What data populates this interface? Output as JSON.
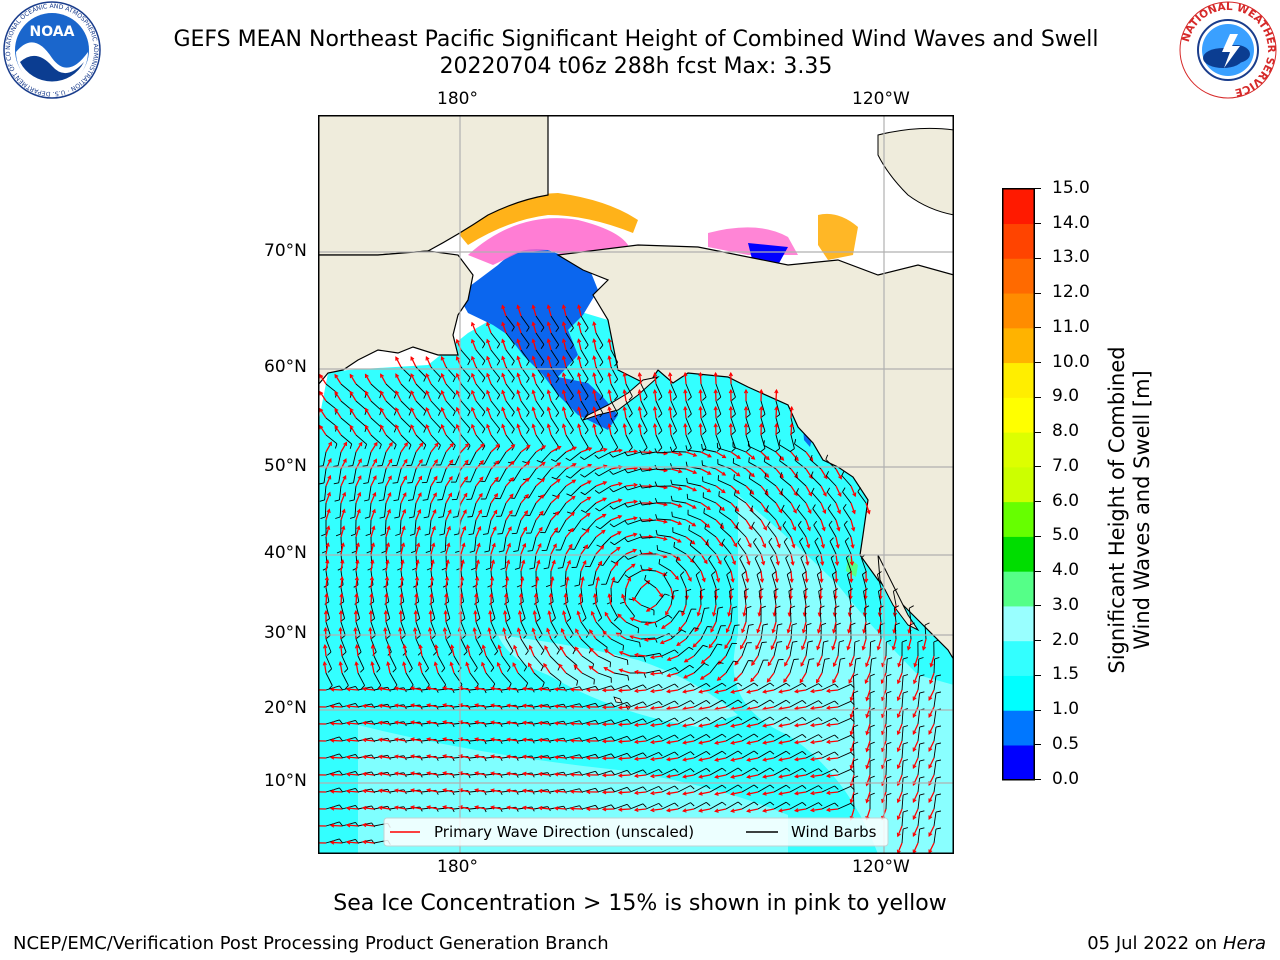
{
  "header": {
    "title_line1": "GEFS MEAN Northeast Pacific Significant Height of Combined Wind Waves and Swell",
    "title_line2": "20220704 t06z 288h fcst   Max: 3.35"
  },
  "logos": {
    "noaa": {
      "text": "NOAA",
      "ring_text": "NATIONAL OCEANIC AND ATMOSPHERIC ADMINISTRATION · U.S. DEPARTMENT OF COMMERCE"
    },
    "nws": {
      "ring_text": "NATIONAL WEATHER SERVICE"
    }
  },
  "map": {
    "lon_labels_top": [
      "180°",
      "120°W"
    ],
    "lon_labels_bottom": [
      "180°",
      "120°W"
    ],
    "lat_labels": [
      "70°N",
      "60°N",
      "50°N",
      "40°N",
      "30°N",
      "20°N",
      "10°N"
    ],
    "colors": {
      "land": "#efecdc",
      "ocean_main": "#33ffff",
      "ocean_light": "#99ffff",
      "ocean_deep": "#0b66ee",
      "grid": "#b0b0b0"
    },
    "legend": {
      "wave_label": "Primary Wave Direction (unscaled)",
      "wave_color": "#ff0000",
      "barb_label": "Wind Barbs",
      "barb_color": "#000000"
    }
  },
  "colorbar": {
    "label_line1": "Significant Height of Combined",
    "label_line2": "Wind Waves and Swell [m]",
    "ticks": [
      "0.0",
      "0.5",
      "1.0",
      "1.5",
      "2.0",
      "3.0",
      "4.0",
      "5.0",
      "6.0",
      "7.0",
      "8.0",
      "9.0",
      "10.0",
      "11.0",
      "12.0",
      "13.0",
      "14.0",
      "15.0"
    ],
    "colors": [
      "#0000ff",
      "#0077ff",
      "#00ffff",
      "#33ffff",
      "#99ffff",
      "#55ff88",
      "#00dd00",
      "#66ff00",
      "#ccff00",
      "#ddff00",
      "#ffff00",
      "#ffee00",
      "#ffb300",
      "#ff8c00",
      "#ff6a00",
      "#ff4400",
      "#ff1a00"
    ]
  },
  "caption": "Sea Ice Concentration > 15% is shown in pink to yellow",
  "footer": {
    "left": "NCEP/EMC/Verification Post Processing Product Generation Branch",
    "right_prefix": "05 Jul 2022 on ",
    "right_machine": "Hera"
  }
}
